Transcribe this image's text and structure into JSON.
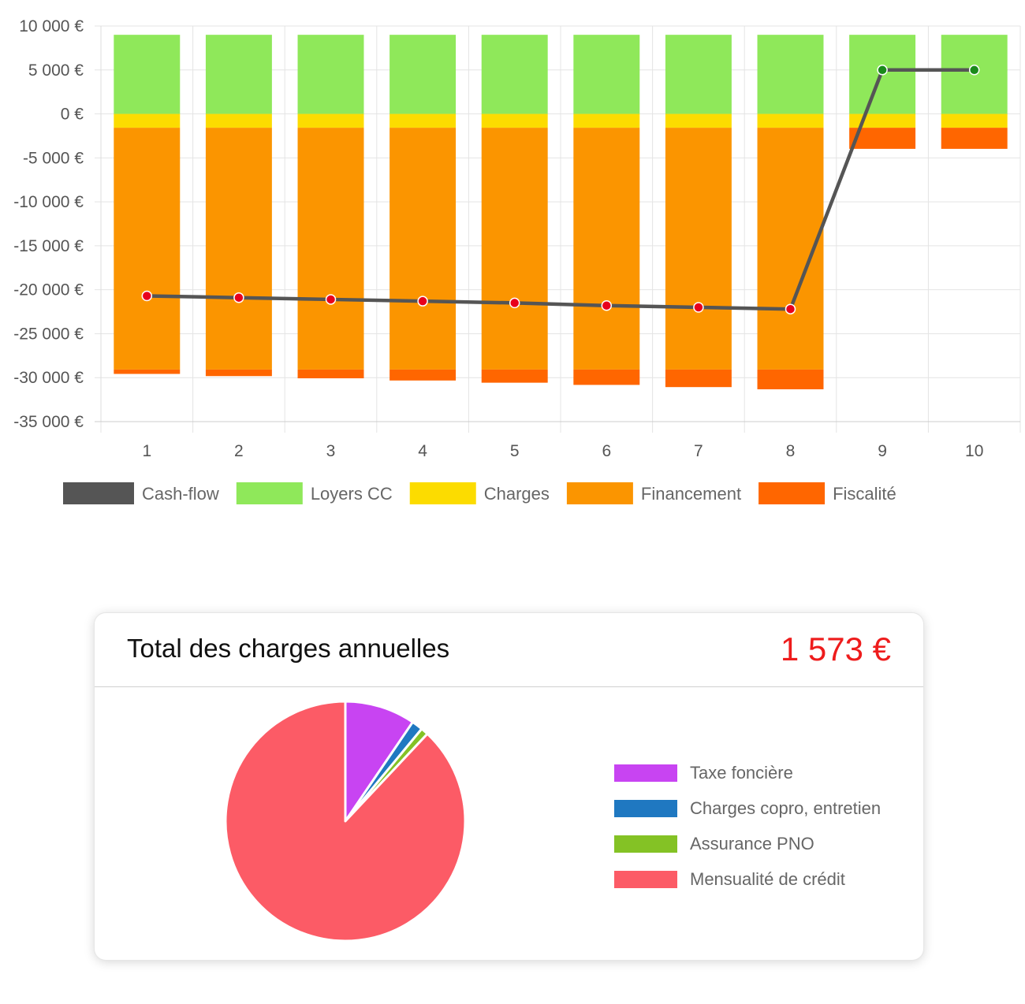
{
  "chart_data": [
    {
      "type": "bar",
      "stacked": true,
      "categories": [
        "1",
        "2",
        "3",
        "4",
        "5",
        "6",
        "7",
        "8",
        "9",
        "10"
      ],
      "ylim": [
        -35000,
        10000
      ],
      "y_ticks": [
        10000,
        5000,
        0,
        -5000,
        -10000,
        -15000,
        -20000,
        -25000,
        -30000,
        -35000
      ],
      "y_tick_labels": [
        "10 000 €",
        "5 000 €",
        "0 €",
        "-5 000 €",
        "-10 000 €",
        "-15 000 €",
        "-20 000 €",
        "-25 000 €",
        "-30 000 €",
        "-35 000 €"
      ],
      "grid": true,
      "legend_position": "bottom",
      "series": [
        {
          "name": "Loyers CC",
          "kind": "bar",
          "color": "#8fe85a",
          "values": [
            9000,
            9000,
            9000,
            9000,
            9000,
            9000,
            9000,
            9000,
            9000,
            9000
          ]
        },
        {
          "name": "Charges",
          "kind": "bar",
          "color": "#fcdc00",
          "values": [
            -1573,
            -1573,
            -1573,
            -1573,
            -1573,
            -1573,
            -1573,
            -1573,
            -1573,
            -1573
          ]
        },
        {
          "name": "Financement",
          "kind": "bar",
          "color": "#fb9500",
          "values": [
            -27500,
            -27500,
            -27500,
            -27500,
            -27500,
            -27500,
            -27500,
            -27500,
            0,
            0
          ]
        },
        {
          "name": "Fiscalité",
          "kind": "bar",
          "color": "#ff6600",
          "values": [
            -500,
            -750,
            -1000,
            -1250,
            -1500,
            -1750,
            -2000,
            -2250,
            -2400,
            -2400
          ]
        },
        {
          "name": "Cash-flow",
          "kind": "line",
          "color": "#555555",
          "values": [
            -20700,
            -20900,
            -21100,
            -21300,
            -21500,
            -21800,
            -22000,
            -22200,
            5000,
            5000
          ],
          "marker_colors": [
            "#e8001c",
            "#e8001c",
            "#e8001c",
            "#e8001c",
            "#e8001c",
            "#e8001c",
            "#e8001c",
            "#e8001c",
            "#1a8a1a",
            "#1a8a1a"
          ]
        }
      ]
    },
    {
      "type": "pie",
      "title": "Total des charges annuelles",
      "labels": [
        "Taxe foncière",
        "Charges copro, entretien",
        "Assurance PNO",
        "Mensualité de crédit"
      ],
      "values": [
        9.5,
        1.5,
        1,
        88
      ],
      "colors": [
        "#c844f2",
        "#1f78c1",
        "#84c225",
        "#fc5b66"
      ],
      "legend_position": "right"
    }
  ],
  "summary": {
    "title": "Total des charges annuelles",
    "total": "1 573 €"
  }
}
